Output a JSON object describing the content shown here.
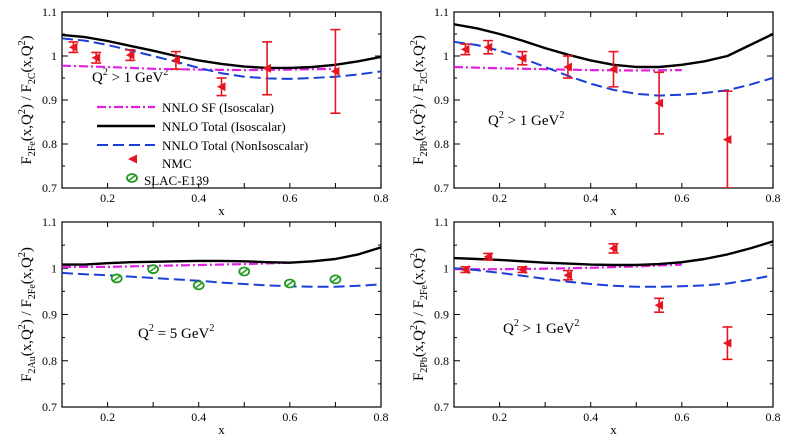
{
  "colors": {
    "nnlo_sf": "#e020e0",
    "nnlo_total_iso": "#000000",
    "nnlo_total_noniso": "#1a3fd8",
    "nmc": "#e8141e",
    "slac": "#1f9a1f"
  },
  "legend": {
    "nnlo_sf": "NNLO SF (Isoscalar)",
    "nnlo_total_iso": "NNLO Total (Isoscalar)",
    "nnlo_total_noniso": "NNLO Total (NonIsoscalar)",
    "nmc": "NMC",
    "slac": "SLAC-E139"
  },
  "chart_data": [
    {
      "type": "line",
      "panel": "top-left",
      "ylabel": {
        "base": "F",
        "sub1": "2Fe",
        "mid": "(x,Q",
        "sup": "2",
        "mid2": ") / F",
        "sub2": "2C",
        "end": "(x,Q",
        "sup2": "2",
        "close": ")"
      },
      "xlabel": "x",
      "annotation": {
        "text": "Q",
        "sup": "2",
        "rest": " > 1 GeV",
        "sup2": "2"
      },
      "xlim": [
        0.1,
        0.8
      ],
      "ylim": [
        0.7,
        1.1
      ],
      "xticks": [
        "0.2",
        "0.4",
        "0.6",
        "0.8"
      ],
      "yticks": [
        "0.7",
        "0.8",
        "0.9",
        "1",
        "1.1"
      ],
      "legend_position": "lower-left",
      "series": [
        {
          "name": "NNLO SF (Isoscalar)",
          "style": "dashdot",
          "x": [
            0.1,
            0.2,
            0.3,
            0.4,
            0.5,
            0.6,
            0.7
          ],
          "y": [
            0.978,
            0.975,
            0.971,
            0.969,
            0.968,
            0.969,
            0.971
          ]
        },
        {
          "name": "NNLO Total (Isoscalar)",
          "style": "solid",
          "x": [
            0.1,
            0.15,
            0.2,
            0.25,
            0.3,
            0.35,
            0.4,
            0.45,
            0.5,
            0.55,
            0.6,
            0.65,
            0.7,
            0.75,
            0.8
          ],
          "y": [
            1.048,
            1.043,
            1.034,
            1.023,
            1.012,
            1.0,
            0.99,
            0.982,
            0.976,
            0.973,
            0.973,
            0.975,
            0.98,
            0.988,
            0.998
          ]
        },
        {
          "name": "NNLO Total (NonIsoscalar)",
          "style": "dashed",
          "x": [
            0.1,
            0.15,
            0.2,
            0.25,
            0.3,
            0.35,
            0.4,
            0.45,
            0.5,
            0.55,
            0.6,
            0.65,
            0.7,
            0.75,
            0.8
          ],
          "y": [
            1.04,
            1.035,
            1.025,
            1.013,
            1.0,
            0.987,
            0.973,
            0.961,
            0.953,
            0.949,
            0.948,
            0.95,
            0.953,
            0.958,
            0.965
          ]
        },
        {
          "name": "NMC",
          "style": "points",
          "x": [
            0.125,
            0.175,
            0.25,
            0.35,
            0.45,
            0.55,
            0.7
          ],
          "y": [
            1.02,
            0.996,
            1.002,
            0.99,
            0.93,
            0.972,
            0.965
          ],
          "err": [
            0.012,
            0.012,
            0.012,
            0.02,
            0.02,
            0.06,
            0.095
          ]
        }
      ]
    },
    {
      "type": "line",
      "panel": "top-right",
      "ylabel": {
        "base": "F",
        "sub1": "2Pb",
        "mid": "(x,Q",
        "sup": "2",
        "mid2": ") / F",
        "sub2": "2C",
        "end": "(x,Q",
        "sup2": "2",
        "close": ")"
      },
      "xlabel": "x",
      "annotation": {
        "text": "Q",
        "sup": "2",
        "rest": " > 1 GeV",
        "sup2": "2"
      },
      "xlim": [
        0.1,
        0.8
      ],
      "ylim": [
        0.7,
        1.1
      ],
      "xticks": [
        "0.2",
        "0.4",
        "0.6",
        "0.8"
      ],
      "yticks": [
        "0.7",
        "0.8",
        "0.9",
        "1",
        "1.1"
      ],
      "series": [
        {
          "name": "NNLO SF (Isoscalar)",
          "style": "dashdot",
          "x": [
            0.1,
            0.2,
            0.3,
            0.4,
            0.5,
            0.6
          ],
          "y": [
            0.975,
            0.972,
            0.97,
            0.968,
            0.967,
            0.968
          ]
        },
        {
          "name": "NNLO Total (Isoscalar)",
          "style": "solid",
          "x": [
            0.1,
            0.15,
            0.2,
            0.25,
            0.3,
            0.35,
            0.4,
            0.45,
            0.5,
            0.55,
            0.6,
            0.65,
            0.7,
            0.75,
            0.8
          ],
          "y": [
            1.072,
            1.063,
            1.05,
            1.035,
            1.018,
            1.003,
            0.99,
            0.98,
            0.975,
            0.975,
            0.98,
            0.988,
            1.0,
            1.025,
            1.05
          ]
        },
        {
          "name": "NNLO Total (NonIsoscalar)",
          "style": "dashed",
          "x": [
            0.1,
            0.15,
            0.2,
            0.25,
            0.3,
            0.35,
            0.4,
            0.45,
            0.5,
            0.55,
            0.6,
            0.65,
            0.7,
            0.75,
            0.8
          ],
          "y": [
            1.032,
            1.025,
            1.012,
            0.995,
            0.975,
            0.955,
            0.937,
            0.923,
            0.914,
            0.91,
            0.912,
            0.916,
            0.922,
            0.935,
            0.95
          ]
        },
        {
          "name": "NMC",
          "style": "points",
          "x": [
            0.125,
            0.175,
            0.25,
            0.35,
            0.45,
            0.55,
            0.7
          ],
          "y": [
            1.015,
            1.02,
            0.995,
            0.975,
            0.97,
            0.893,
            0.81
          ],
          "err": [
            0.012,
            0.015,
            0.015,
            0.025,
            0.04,
            0.07,
            0.11
          ]
        }
      ]
    },
    {
      "type": "line",
      "panel": "bottom-left",
      "ylabel": {
        "base": "F",
        "sub1": "2Au",
        "mid": "(x,Q",
        "sup": "2",
        "mid2": ") / F",
        "sub2": "2Fe",
        "end": "(x,Q",
        "sup2": "2",
        "close": ")"
      },
      "xlabel": "x",
      "annotation": {
        "text": "Q",
        "sup": "2",
        "rest": " = 5 GeV",
        "sup2": "2"
      },
      "xlim": [
        0.1,
        0.8
      ],
      "ylim": [
        0.7,
        1.1
      ],
      "xticks": [
        "0.2",
        "0.4",
        "0.6",
        "0.8"
      ],
      "yticks": [
        "0.7",
        "0.8",
        "0.9",
        "1",
        "1.1"
      ],
      "series": [
        {
          "name": "NNLO SF (Isoscalar)",
          "style": "dashdot",
          "x": [
            0.1,
            0.2,
            0.3,
            0.4,
            0.5,
            0.6
          ],
          "y": [
            1.003,
            1.003,
            1.005,
            1.007,
            1.009,
            1.012
          ]
        },
        {
          "name": "NNLO Total (Isoscalar)",
          "style": "solid",
          "x": [
            0.1,
            0.15,
            0.2,
            0.25,
            0.3,
            0.35,
            0.4,
            0.45,
            0.5,
            0.55,
            0.6,
            0.65,
            0.7,
            0.75,
            0.8
          ],
          "y": [
            1.008,
            1.008,
            1.011,
            1.013,
            1.014,
            1.015,
            1.016,
            1.016,
            1.015,
            1.013,
            1.012,
            1.015,
            1.02,
            1.03,
            1.045
          ]
        },
        {
          "name": "NNLO Total (NonIsoscalar)",
          "style": "dashed",
          "x": [
            0.1,
            0.15,
            0.2,
            0.25,
            0.3,
            0.35,
            0.4,
            0.45,
            0.5,
            0.55,
            0.6,
            0.65,
            0.7,
            0.75,
            0.8
          ],
          "y": [
            0.99,
            0.987,
            0.985,
            0.982,
            0.979,
            0.976,
            0.973,
            0.969,
            0.966,
            0.963,
            0.961,
            0.96,
            0.96,
            0.962,
            0.965
          ]
        },
        {
          "name": "SLAC-E139",
          "style": "points",
          "x": [
            0.22,
            0.3,
            0.4,
            0.5,
            0.6,
            0.7
          ],
          "y": [
            0.978,
            0.998,
            0.963,
            0.993,
            0.967,
            0.976
          ]
        }
      ]
    },
    {
      "type": "line",
      "panel": "bottom-right",
      "ylabel": {
        "base": "F",
        "sub1": "2Pb",
        "mid": "(x,Q",
        "sup": "2",
        "mid2": ") / F",
        "sub2": "2Fe",
        "end": "(x,Q",
        "sup2": "2",
        "close": ")"
      },
      "xlabel": "x",
      "annotation": {
        "text": "Q",
        "sup": "2",
        "rest": " > 1 GeV",
        "sup2": "2"
      },
      "xlim": [
        0.1,
        0.8
      ],
      "ylim": [
        0.7,
        1.1
      ],
      "xticks": [
        "0.2",
        "0.4",
        "0.6",
        "0.8"
      ],
      "yticks": [
        "0.7",
        "0.8",
        "0.9",
        "1",
        "1.1"
      ],
      "series": [
        {
          "name": "NNLO SF (Isoscalar)",
          "style": "dashdot",
          "x": [
            0.1,
            0.2,
            0.3,
            0.4,
            0.5,
            0.6
          ],
          "y": [
            0.998,
            0.998,
            0.999,
            1.001,
            1.004,
            1.008
          ]
        },
        {
          "name": "NNLO Total (Isoscalar)",
          "style": "solid",
          "x": [
            0.1,
            0.15,
            0.2,
            0.25,
            0.3,
            0.35,
            0.4,
            0.45,
            0.5,
            0.55,
            0.6,
            0.65,
            0.7,
            0.75,
            0.8
          ],
          "y": [
            1.022,
            1.02,
            1.018,
            1.015,
            1.012,
            1.01,
            1.008,
            1.007,
            1.007,
            1.009,
            1.013,
            1.02,
            1.03,
            1.043,
            1.058
          ]
        },
        {
          "name": "NNLO Total (NonIsoscalar)",
          "style": "dashed",
          "x": [
            0.1,
            0.15,
            0.2,
            0.25,
            0.3,
            0.35,
            0.4,
            0.45,
            0.5,
            0.55,
            0.6,
            0.65,
            0.7,
            0.75,
            0.8
          ],
          "y": [
            1.0,
            0.996,
            0.99,
            0.984,
            0.977,
            0.971,
            0.966,
            0.962,
            0.96,
            0.96,
            0.961,
            0.963,
            0.967,
            0.975,
            0.985
          ]
        },
        {
          "name": "NMC",
          "style": "points",
          "x": [
            0.125,
            0.175,
            0.25,
            0.35,
            0.45,
            0.55,
            0.7
          ],
          "y": [
            0.997,
            1.025,
            0.997,
            0.985,
            1.043,
            0.92,
            0.838
          ],
          "err": [
            0.006,
            0.007,
            0.006,
            0.01,
            0.01,
            0.015,
            0.035
          ]
        }
      ]
    }
  ]
}
